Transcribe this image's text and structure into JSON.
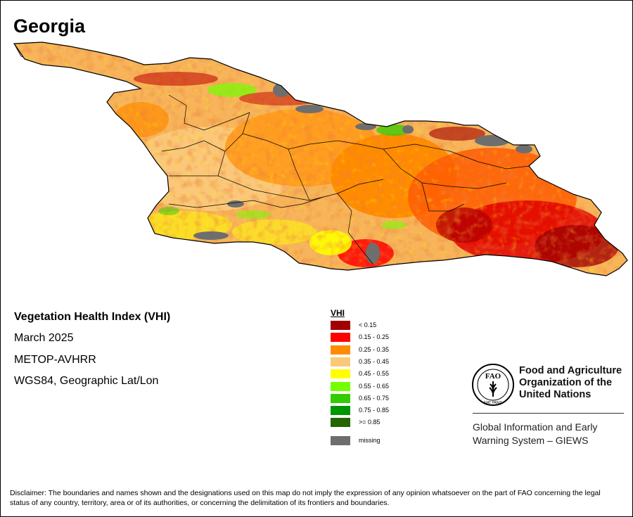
{
  "map": {
    "title": "Georgia",
    "index_name": "Vegetation Health Index (VHI)",
    "period": "March 2025",
    "sensor": "METOP-AVHRR",
    "projection": "WGS84, Geographic Lat/Lon"
  },
  "legend": {
    "title": "VHI",
    "items": [
      {
        "label": "< 0.15",
        "color": "#a00000"
      },
      {
        "label": "0.15 - 0.25",
        "color": "#ff0000"
      },
      {
        "label": "0.25 - 0.35",
        "color": "#ff8c00"
      },
      {
        "label": "0.35 - 0.45",
        "color": "#fac878"
      },
      {
        "label": "0.45 - 0.55",
        "color": "#ffff00"
      },
      {
        "label": "0.55 - 0.65",
        "color": "#73ff00"
      },
      {
        "label": "0.65 - 0.75",
        "color": "#32cd00"
      },
      {
        "label": "0.75 - 0.85",
        "color": "#009600"
      },
      {
        "label": ">= 0.85",
        "color": "#266400"
      }
    ],
    "missing": {
      "label": "missing",
      "color": "#6e6e6e"
    }
  },
  "org": {
    "name_line1": "Food and Agriculture",
    "name_line2": "Organization of the",
    "name_line3": "United Nations",
    "logo_letters": "FAO",
    "logo_motto": "FIAT PANIS",
    "system_line1": "Global Information and Early",
    "system_line2": "Warning System – GIEWS"
  },
  "disclaimer": "Disclaimer: The boundaries and names shown and the designations used on this map do not imply the expression of any opinion whatsoever on the part of FAO concerning the legal status of any country, territory, area or of its authorities, or concerning the delimitation of its frontiers and boundaries."
}
